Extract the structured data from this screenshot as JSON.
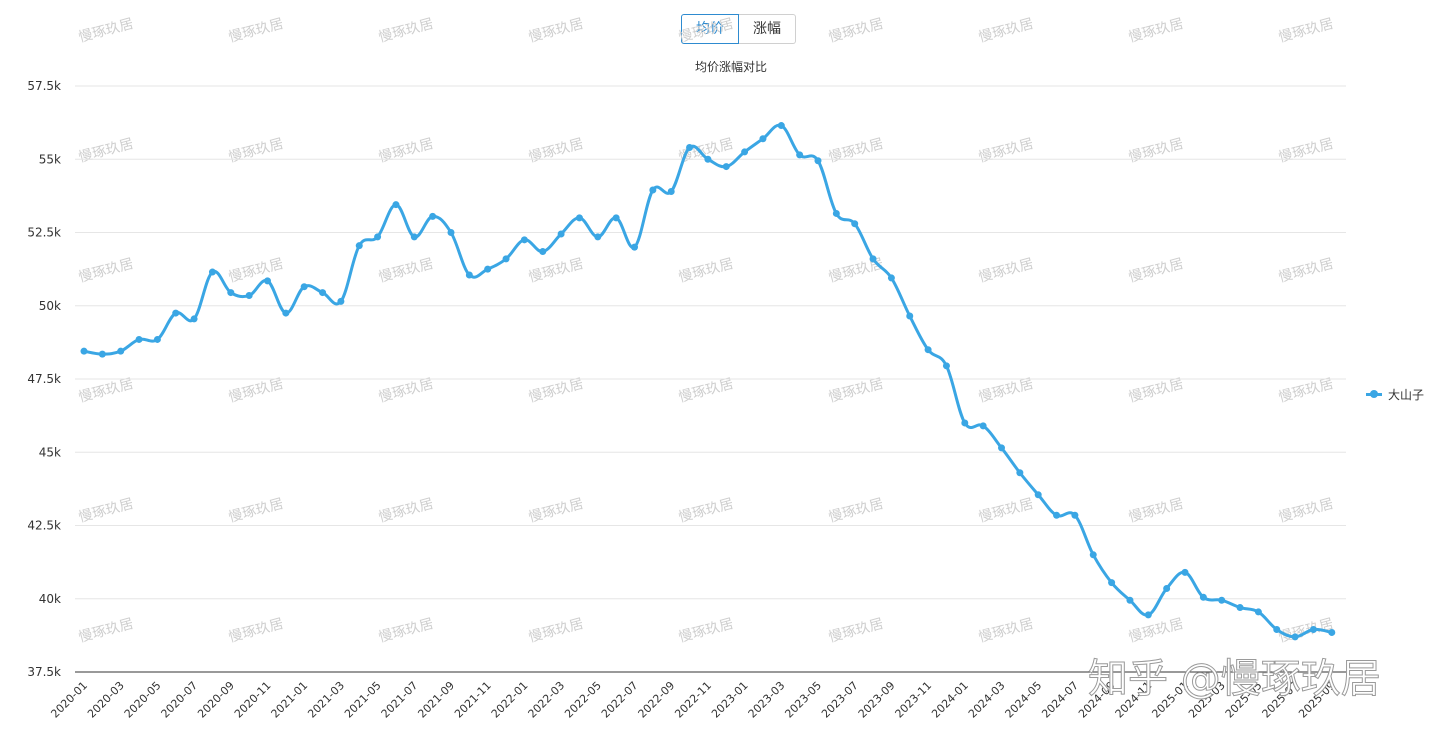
{
  "toggle": {
    "avg_label": "均价",
    "change_label": "涨幅"
  },
  "subtitle": "均价涨幅对比",
  "legend": {
    "series_name": "大山子"
  },
  "watermark": {
    "small_text": "慢琢玖居",
    "big_text": "知乎 @慢琢玖居"
  },
  "colors": {
    "series": "#3aa6e4",
    "grid": "#e6e6e6",
    "accent": "#2e8bd0"
  },
  "chart_data": {
    "type": "line",
    "title": "均价涨幅对比",
    "ylim": [
      37500,
      57500
    ],
    "y_ticks": [
      "37.5k",
      "40k",
      "42.5k",
      "45k",
      "47.5k",
      "50k",
      "52.5k",
      "55k",
      "57.5k"
    ],
    "x_ticks": [
      "2020-01",
      "2020-03",
      "2020-05",
      "2020-07",
      "2020-09",
      "2020-11",
      "2021-01",
      "2021-03",
      "2021-05",
      "2021-07",
      "2021-09",
      "2021-11",
      "2022-01",
      "2022-03",
      "2022-05",
      "2022-07",
      "2022-09",
      "2022-11",
      "2023-01",
      "2023-03",
      "2023-05",
      "2023-07",
      "2023-09",
      "2023-11",
      "2024-01",
      "2024-03",
      "2024-05",
      "2024-07",
      "2024-09",
      "2024-11",
      "2025-01",
      "2025-03",
      "2025-05",
      "2025-07",
      "2025-09"
    ],
    "x": [
      "2020-01",
      "2020-02",
      "2020-03",
      "2020-04",
      "2020-05",
      "2020-06",
      "2020-07",
      "2020-08",
      "2020-09",
      "2020-10",
      "2020-11",
      "2020-12",
      "2021-01",
      "2021-02",
      "2021-03",
      "2021-04",
      "2021-05",
      "2021-06",
      "2021-07",
      "2021-08",
      "2021-09",
      "2021-10",
      "2021-11",
      "2021-12",
      "2022-01",
      "2022-02",
      "2022-03",
      "2022-04",
      "2022-05",
      "2022-06",
      "2022-07",
      "2022-08",
      "2022-09",
      "2022-10",
      "2022-11",
      "2022-12",
      "2023-01",
      "2023-02",
      "2023-03",
      "2023-04",
      "2023-05",
      "2023-06",
      "2023-07",
      "2023-08",
      "2023-09",
      "2023-10",
      "2023-11",
      "2023-12",
      "2024-01",
      "2024-02",
      "2024-03",
      "2024-04",
      "2024-05",
      "2024-06",
      "2024-07",
      "2024-08",
      "2024-09",
      "2024-10",
      "2024-11",
      "2024-12",
      "2025-01",
      "2025-02",
      "2025-03",
      "2025-04",
      "2025-05",
      "2025-06",
      "2025-07",
      "2025-08",
      "2025-09"
    ],
    "series": [
      {
        "name": "大山子",
        "values": [
          48450,
          48350,
          48450,
          48850,
          48850,
          49750,
          49550,
          51150,
          50450,
          50350,
          50850,
          49750,
          50650,
          50450,
          50150,
          52050,
          52350,
          53450,
          52350,
          53050,
          52500,
          51050,
          51250,
          51600,
          52250,
          51850,
          52450,
          53000,
          52350,
          53000,
          52000,
          53950,
          53900,
          55400,
          55000,
          54750,
          55250,
          55700,
          56150,
          55150,
          54950,
          53150,
          52800,
          51600,
          50950,
          49650,
          48500,
          47950,
          46000,
          45900,
          45150,
          44300,
          43550,
          42850,
          42850,
          41500,
          40550,
          39950,
          39450,
          40350,
          40900,
          40050,
          39950,
          39700,
          39550,
          38950,
          38700,
          38950,
          38850
        ]
      }
    ]
  }
}
